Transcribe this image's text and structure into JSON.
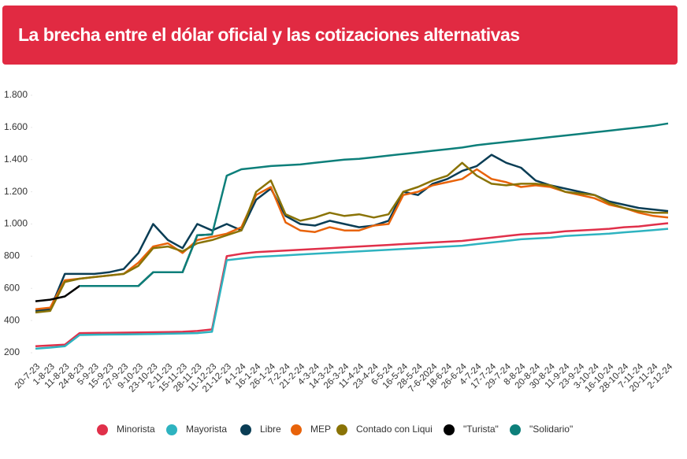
{
  "chart_data": {
    "type": "line",
    "title": "La brecha entre el dólar oficial y las cotizaciones alternativas",
    "categories": [
      "20-7-23",
      "1-8-23",
      "11-8-23",
      "24-8-23",
      "5-9-23",
      "15-9-23",
      "27-9-23",
      "9-10-23",
      "23-10-23",
      "2-11-23",
      "15-11-23",
      "28-11-23",
      "11-12-23",
      "21-12-23",
      "4-1-24",
      "16-1-24",
      "26-1-24",
      "7-2-24",
      "21-2-24",
      "4-3-24",
      "14-3-24",
      "26-3-24",
      "11-4-24",
      "23-4-24",
      "6-5-24",
      "16-5-24",
      "28-5-24",
      "7-6-2024",
      "18-6-24",
      "26-6-24",
      "4-7-24",
      "17-7-24",
      "29-7-24",
      "8-8-24",
      "20-8-24",
      "30-8-24",
      "11-9-24",
      "23-9-24",
      "3-10-24",
      "16-10-24",
      "28-10-24",
      "7-11-24",
      "20-11-24",
      "2-12-24"
    ],
    "ylim": [
      200,
      1800
    ],
    "yticks": [
      200,
      400,
      600,
      800,
      {
        "value": 1000,
        "label": "1.000"
      },
      {
        "value": 1200,
        "label": "1.200"
      },
      {
        "value": 1400,
        "label": "1.400"
      },
      {
        "value": 1600,
        "label": "1.600"
      },
      {
        "value": 1800,
        "label": "1.800"
      }
    ],
    "grid": false,
    "legend": "bottom",
    "series": [
      {
        "name": "Minorista",
        "color": "#e0304a",
        "values": [
          240,
          245,
          250,
          322,
          323,
          324,
          325,
          326,
          327,
          328,
          330,
          335,
          345,
          800,
          815,
          825,
          830,
          835,
          840,
          845,
          850,
          855,
          860,
          865,
          870,
          875,
          880,
          885,
          890,
          895,
          905,
          915,
          925,
          935,
          940,
          945,
          955,
          960,
          965,
          970,
          980,
          985,
          995,
          1005
        ]
      },
      {
        "name": "Mayorista",
        "color": "#2eb3c0",
        "values": [
          225,
          232,
          240,
          310,
          312,
          313,
          314,
          315,
          316,
          318,
          320,
          322,
          330,
          775,
          785,
          795,
          800,
          805,
          810,
          815,
          820,
          825,
          830,
          835,
          840,
          845,
          850,
          855,
          860,
          865,
          875,
          885,
          895,
          905,
          910,
          915,
          925,
          930,
          935,
          940,
          948,
          955,
          962,
          970
        ]
      },
      {
        "name": "Libre",
        "color": "#0a3d55",
        "values": [
          460,
          470,
          690,
          690,
          690,
          700,
          720,
          820,
          1000,
          900,
          850,
          1000,
          960,
          1000,
          960,
          1150,
          1220,
          1050,
          1000,
          990,
          1020,
          1000,
          980,
          990,
          1020,
          1200,
          1180,
          1250,
          1280,
          1330,
          1360,
          1430,
          1380,
          1350,
          1270,
          1240,
          1220,
          1200,
          1180,
          1140,
          1120,
          1100,
          1090,
          1080
        ]
      },
      {
        "name": "MEP",
        "color": "#e8630a",
        "values": [
          470,
          480,
          650,
          660,
          670,
          680,
          690,
          760,
          860,
          880,
          820,
          900,
          920,
          940,
          980,
          1180,
          1230,
          1010,
          960,
          950,
          980,
          960,
          960,
          990,
          1000,
          1180,
          1200,
          1240,
          1260,
          1280,
          1340,
          1280,
          1260,
          1230,
          1240,
          1230,
          1200,
          1180,
          1160,
          1120,
          1100,
          1070,
          1050,
          1040
        ]
      },
      {
        "name": "Contado con Liqui",
        "color": "#8a7306",
        "values": [
          450,
          460,
          640,
          660,
          670,
          680,
          690,
          740,
          850,
          860,
          830,
          880,
          900,
          930,
          960,
          1200,
          1270,
          1060,
          1020,
          1040,
          1070,
          1050,
          1060,
          1040,
          1060,
          1200,
          1230,
          1270,
          1300,
          1380,
          1300,
          1250,
          1240,
          1250,
          1250,
          1240,
          1200,
          1190,
          1180,
          1130,
          1100,
          1080,
          1070,
          1070
        ]
      },
      {
        "name": "\"Turista\"",
        "color": "#000000",
        "values": [
          520,
          530,
          550,
          615,
          615,
          615,
          615,
          615,
          700,
          700,
          700,
          930,
          935,
          null,
          null,
          null,
          null,
          null,
          null,
          null,
          null,
          null,
          null,
          null,
          null,
          null,
          null,
          null,
          null,
          null,
          null,
          null,
          null,
          null,
          null,
          null,
          null,
          null,
          null,
          null,
          null,
          null,
          null,
          null
        ]
      },
      {
        "name": "\"Solidario\"",
        "color": "#0d7f7a",
        "values": [
          null,
          null,
          null,
          615,
          615,
          615,
          615,
          615,
          700,
          700,
          700,
          930,
          935,
          1300,
          1340,
          1350,
          1360,
          1365,
          1370,
          1380,
          1390,
          1400,
          1405,
          1415,
          1425,
          1435,
          1445,
          1455,
          1465,
          1475,
          1490,
          1500,
          1510,
          1520,
          1530,
          1540,
          1550,
          1560,
          1570,
          1580,
          1590,
          1600,
          1610,
          1625
        ]
      }
    ]
  }
}
